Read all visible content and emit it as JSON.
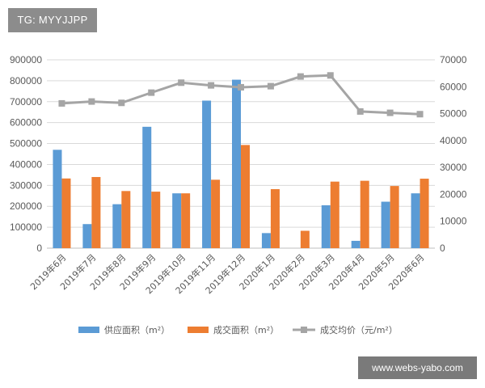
{
  "watermarks": {
    "top_left": "TG: MYYJJPP",
    "bottom_right": "www.webs-yabo.com"
  },
  "chart_data": {
    "type": "bar",
    "categories": [
      "2019年6月",
      "2019年7月",
      "2019年8月",
      "2019年9月",
      "2019年10月",
      "2019年11月",
      "2019年12月",
      "2020年1月",
      "2020年2月",
      "2020年3月",
      "2020年4月",
      "2020年5月",
      "2020年6月"
    ],
    "series": [
      {
        "name": "供应面积（m²）",
        "type": "bar",
        "axis": "left",
        "color": "#5b9bd5",
        "values": [
          470000,
          115000,
          210000,
          580000,
          262000,
          705000,
          805000,
          72000,
          0,
          205000,
          35000,
          222000,
          262000
        ]
      },
      {
        "name": "成交面积（m²）",
        "type": "bar",
        "axis": "left",
        "color": "#ed7d31",
        "values": [
          333000,
          340000,
          273000,
          270000,
          262000,
          327000,
          493000,
          282000,
          83000,
          318000,
          322000,
          297000,
          332000
        ]
      },
      {
        "name": "成交均价（元/m²）",
        "type": "line",
        "axis": "right",
        "color": "#a5a5a5",
        "values": [
          53800,
          54500,
          54000,
          57800,
          61500,
          60500,
          59800,
          60200,
          63800,
          64200,
          50800,
          50300,
          49800
        ]
      }
    ],
    "left_axis": {
      "ylim": [
        0,
        900000
      ],
      "ticks": [
        "0",
        "100000",
        "200000",
        "300000",
        "400000",
        "500000",
        "600000",
        "700000",
        "800000",
        "900000"
      ]
    },
    "right_axis": {
      "ylim": [
        0,
        70000
      ],
      "ticks": [
        "0",
        "10000",
        "20000",
        "30000",
        "40000",
        "50000",
        "60000",
        "70000"
      ]
    },
    "grid": true,
    "legend": "bottom",
    "title": ""
  }
}
